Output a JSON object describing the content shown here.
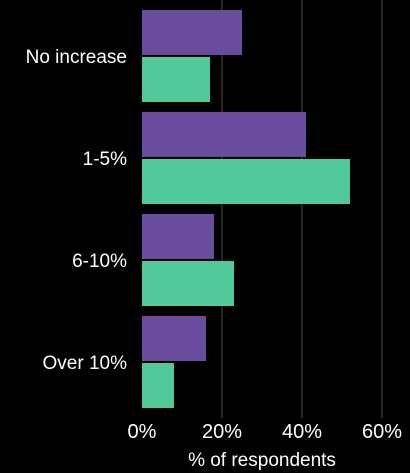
{
  "chart_data": {
    "type": "bar",
    "orientation": "horizontal",
    "categories": [
      "No increase",
      "1-5%",
      "6-10%",
      "Over 10%"
    ],
    "series": [
      {
        "values": [
          25,
          41,
          18,
          16
        ],
        "color": "#6a4c9c"
      },
      {
        "values": [
          17,
          52,
          23,
          8
        ],
        "color": "#52c99a"
      }
    ],
    "xlabel": "% of respondents",
    "xticks": [
      "0%",
      "20%",
      "40%",
      "60%"
    ],
    "xlim": [
      0,
      60
    ],
    "grid": "vertical"
  }
}
